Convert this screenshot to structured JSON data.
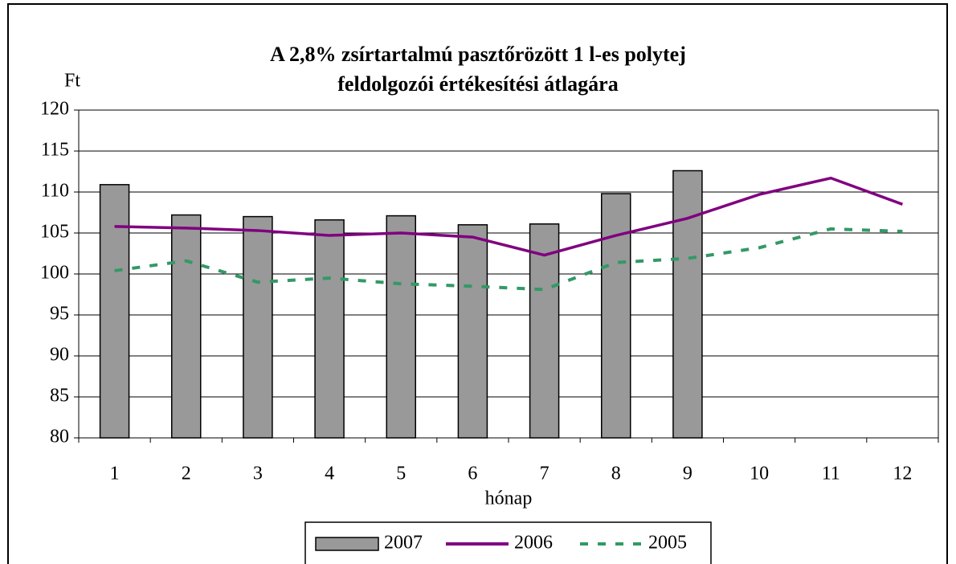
{
  "chart_data": {
    "type": "bar",
    "title": [
      "A 2,8% zsírtartalmú pasztőrözött 1 l-es polytej",
      "feldolgozói értékesítési átlagára"
    ],
    "y_label": "Ft",
    "x_label": "hónap",
    "categories": [
      "1",
      "2",
      "3",
      "4",
      "5",
      "6",
      "7",
      "8",
      "9",
      "10",
      "11",
      "12"
    ],
    "series": [
      {
        "name": "2007",
        "style": "bar",
        "color": "#999999",
        "values": [
          110.9,
          107.2,
          107.0,
          106.6,
          107.1,
          106.0,
          106.1,
          109.8,
          112.6,
          null,
          null,
          null
        ]
      },
      {
        "name": "2006",
        "style": "solid",
        "color": "#800080",
        "values": [
          105.8,
          105.6,
          105.3,
          104.7,
          105.0,
          104.5,
          102.3,
          104.7,
          106.8,
          109.7,
          111.7,
          108.5
        ]
      },
      {
        "name": "2005",
        "style": "dashed",
        "color": "#339966",
        "values": [
          100.4,
          101.6,
          99.0,
          99.5,
          98.8,
          98.5,
          98.1,
          101.4,
          101.9,
          103.2,
          105.5,
          105.2
        ]
      }
    ],
    "ylim": [
      80,
      120
    ],
    "yticks": [
      80,
      85,
      90,
      95,
      100,
      105,
      110,
      115,
      120
    ],
    "grid": true,
    "legend": "bottom"
  }
}
